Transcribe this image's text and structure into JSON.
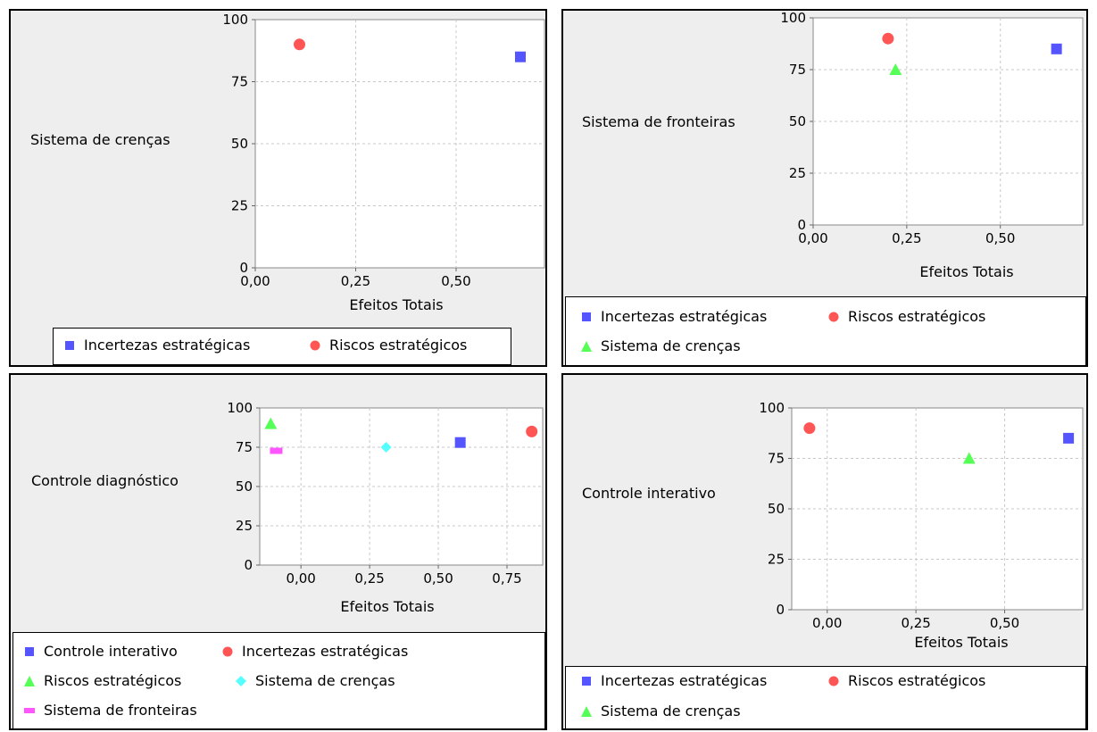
{
  "colors": {
    "blue": "#5555ff",
    "red": "#ff5555",
    "green": "#55ff55",
    "cyan": "#55ffff",
    "magenta": "#ff55ff",
    "grid": "#c8c8c8"
  },
  "chart_data": [
    {
      "type": "scatter",
      "ylabel": "Sistema de crenças",
      "xlabel": "Efeitos Totais",
      "xlim": [
        0,
        0.72
      ],
      "ylim": [
        0,
        100
      ],
      "xticks": [
        "0,00",
        "0,25",
        "0,50"
      ],
      "yticks": [
        "0",
        "25",
        "50",
        "75",
        "100"
      ],
      "grid": true,
      "legend_position": "bottom",
      "series": [
        {
          "name": "Incertezas estratégicas",
          "shape": "square",
          "color": "#5555ff",
          "x": 0.66,
          "y": 85
        },
        {
          "name": "Riscos estratégicos",
          "shape": "circle",
          "color": "#ff5555",
          "x": 0.11,
          "y": 90
        }
      ]
    },
    {
      "type": "scatter",
      "ylabel": "Sistema de fronteiras",
      "xlabel": "Efeitos Totais",
      "xlim": [
        0,
        0.72
      ],
      "ylim": [
        0,
        100
      ],
      "xticks": [
        "0,00",
        "0,25",
        "0,50"
      ],
      "yticks": [
        "0",
        "25",
        "50",
        "75",
        "100"
      ],
      "grid": true,
      "legend_position": "bottom",
      "series": [
        {
          "name": "Incertezas estratégicas",
          "shape": "square",
          "color": "#5555ff",
          "x": 0.65,
          "y": 85
        },
        {
          "name": "Riscos estratégicos",
          "shape": "circle",
          "color": "#ff5555",
          "x": 0.2,
          "y": 90
        },
        {
          "name": "Sistema de crenças",
          "shape": "triangle",
          "color": "#55ff55",
          "x": 0.22,
          "y": 75
        }
      ]
    },
    {
      "type": "scatter",
      "ylabel": "Controle diagnóstico",
      "xlabel": "Efeitos Totais",
      "xlim": [
        -0.15,
        0.88
      ],
      "ylim": [
        0,
        100
      ],
      "xticks": [
        "0,00",
        "0,25",
        "0,50",
        "0,75"
      ],
      "yticks": [
        "0",
        "25",
        "50",
        "75",
        "100"
      ],
      "grid": true,
      "legend_position": "bottom",
      "series": [
        {
          "name": "Controle interativo",
          "shape": "square",
          "color": "#5555ff",
          "x": 0.58,
          "y": 78
        },
        {
          "name": "Incertezas estratégicas",
          "shape": "circle",
          "color": "#ff5555",
          "x": 0.84,
          "y": 85
        },
        {
          "name": "Riscos estratégicos",
          "shape": "triangle",
          "color": "#55ff55",
          "x": -0.11,
          "y": 90
        },
        {
          "name": "Sistema de crenças",
          "shape": "diamond",
          "color": "#55ffff",
          "x": 0.31,
          "y": 75
        },
        {
          "name": "Sistema de fronteiras",
          "shape": "bar",
          "color": "#ff55ff",
          "x": -0.09,
          "y": 73
        }
      ]
    },
    {
      "type": "scatter",
      "ylabel": "Controle interativo",
      "xlabel": "Efeitos Totais",
      "xlim": [
        -0.1,
        0.72
      ],
      "ylim": [
        0,
        100
      ],
      "xticks": [
        "0,00",
        "0,25",
        "0,50"
      ],
      "yticks": [
        "0",
        "25",
        "50",
        "75",
        "100"
      ],
      "grid": true,
      "legend_position": "bottom",
      "series": [
        {
          "name": "Incertezas estratégicas",
          "shape": "square",
          "color": "#5555ff",
          "x": 0.68,
          "y": 85
        },
        {
          "name": "Riscos estratégicos",
          "shape": "circle",
          "color": "#ff5555",
          "x": -0.05,
          "y": 90
        },
        {
          "name": "Sistema de crenças",
          "shape": "triangle",
          "color": "#55ff55",
          "x": 0.4,
          "y": 75
        }
      ]
    }
  ]
}
